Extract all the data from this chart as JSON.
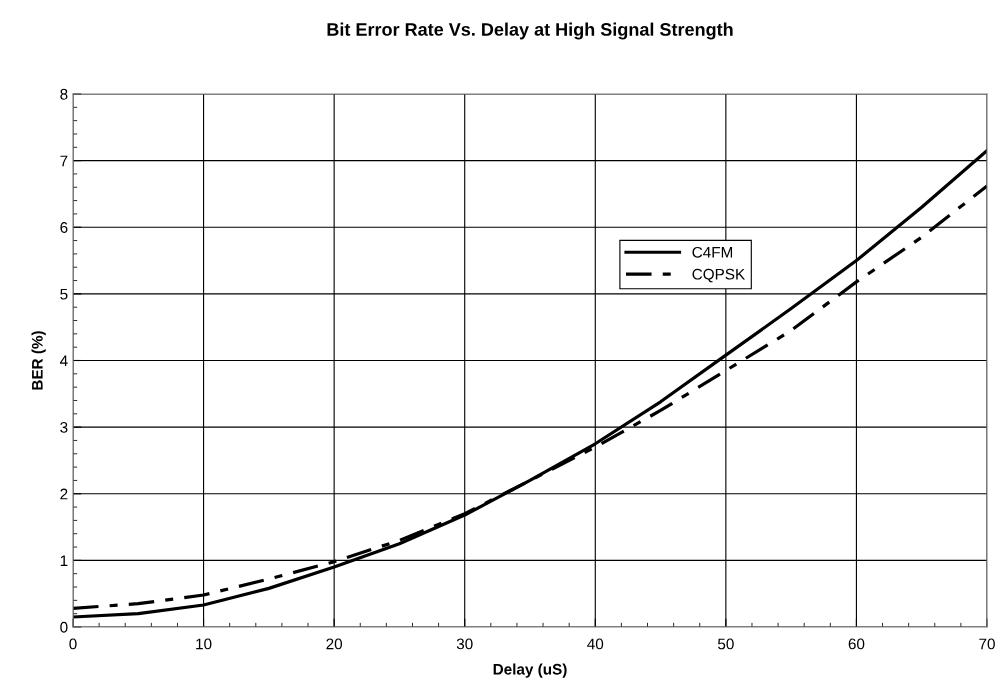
{
  "chart_data": {
    "type": "line",
    "title": "Bit Error Rate Vs. Delay at High Signal Strength",
    "xlabel": "Delay (uS)",
    "ylabel": "BER (%)",
    "x": [
      0,
      5,
      10,
      15,
      20,
      25,
      30,
      35,
      40,
      45,
      50,
      55,
      60,
      65,
      70
    ],
    "series": [
      {
        "name": "C4FM",
        "color": "#000000",
        "line_style": "solid",
        "values": [
          0.15,
          0.2,
          0.33,
          0.58,
          0.9,
          1.25,
          1.68,
          2.2,
          2.75,
          3.38,
          4.08,
          4.78,
          5.5,
          6.3,
          7.15
        ]
      },
      {
        "name": "CQPSK",
        "color": "#000000",
        "line_style": "dashed",
        "values": [
          0.28,
          0.35,
          0.48,
          0.72,
          0.98,
          1.3,
          1.7,
          2.2,
          2.7,
          3.25,
          3.85,
          4.45,
          5.18,
          5.85,
          6.62
        ]
      }
    ],
    "xlim": [
      0,
      70
    ],
    "xticks": [
      0,
      10,
      20,
      30,
      40,
      50,
      60,
      70
    ],
    "ylim": [
      0,
      8
    ],
    "yticks": [
      0,
      1,
      2,
      3,
      4,
      5,
      6,
      7,
      8
    ],
    "grid": true,
    "legend": "right",
    "marker": "none"
  }
}
